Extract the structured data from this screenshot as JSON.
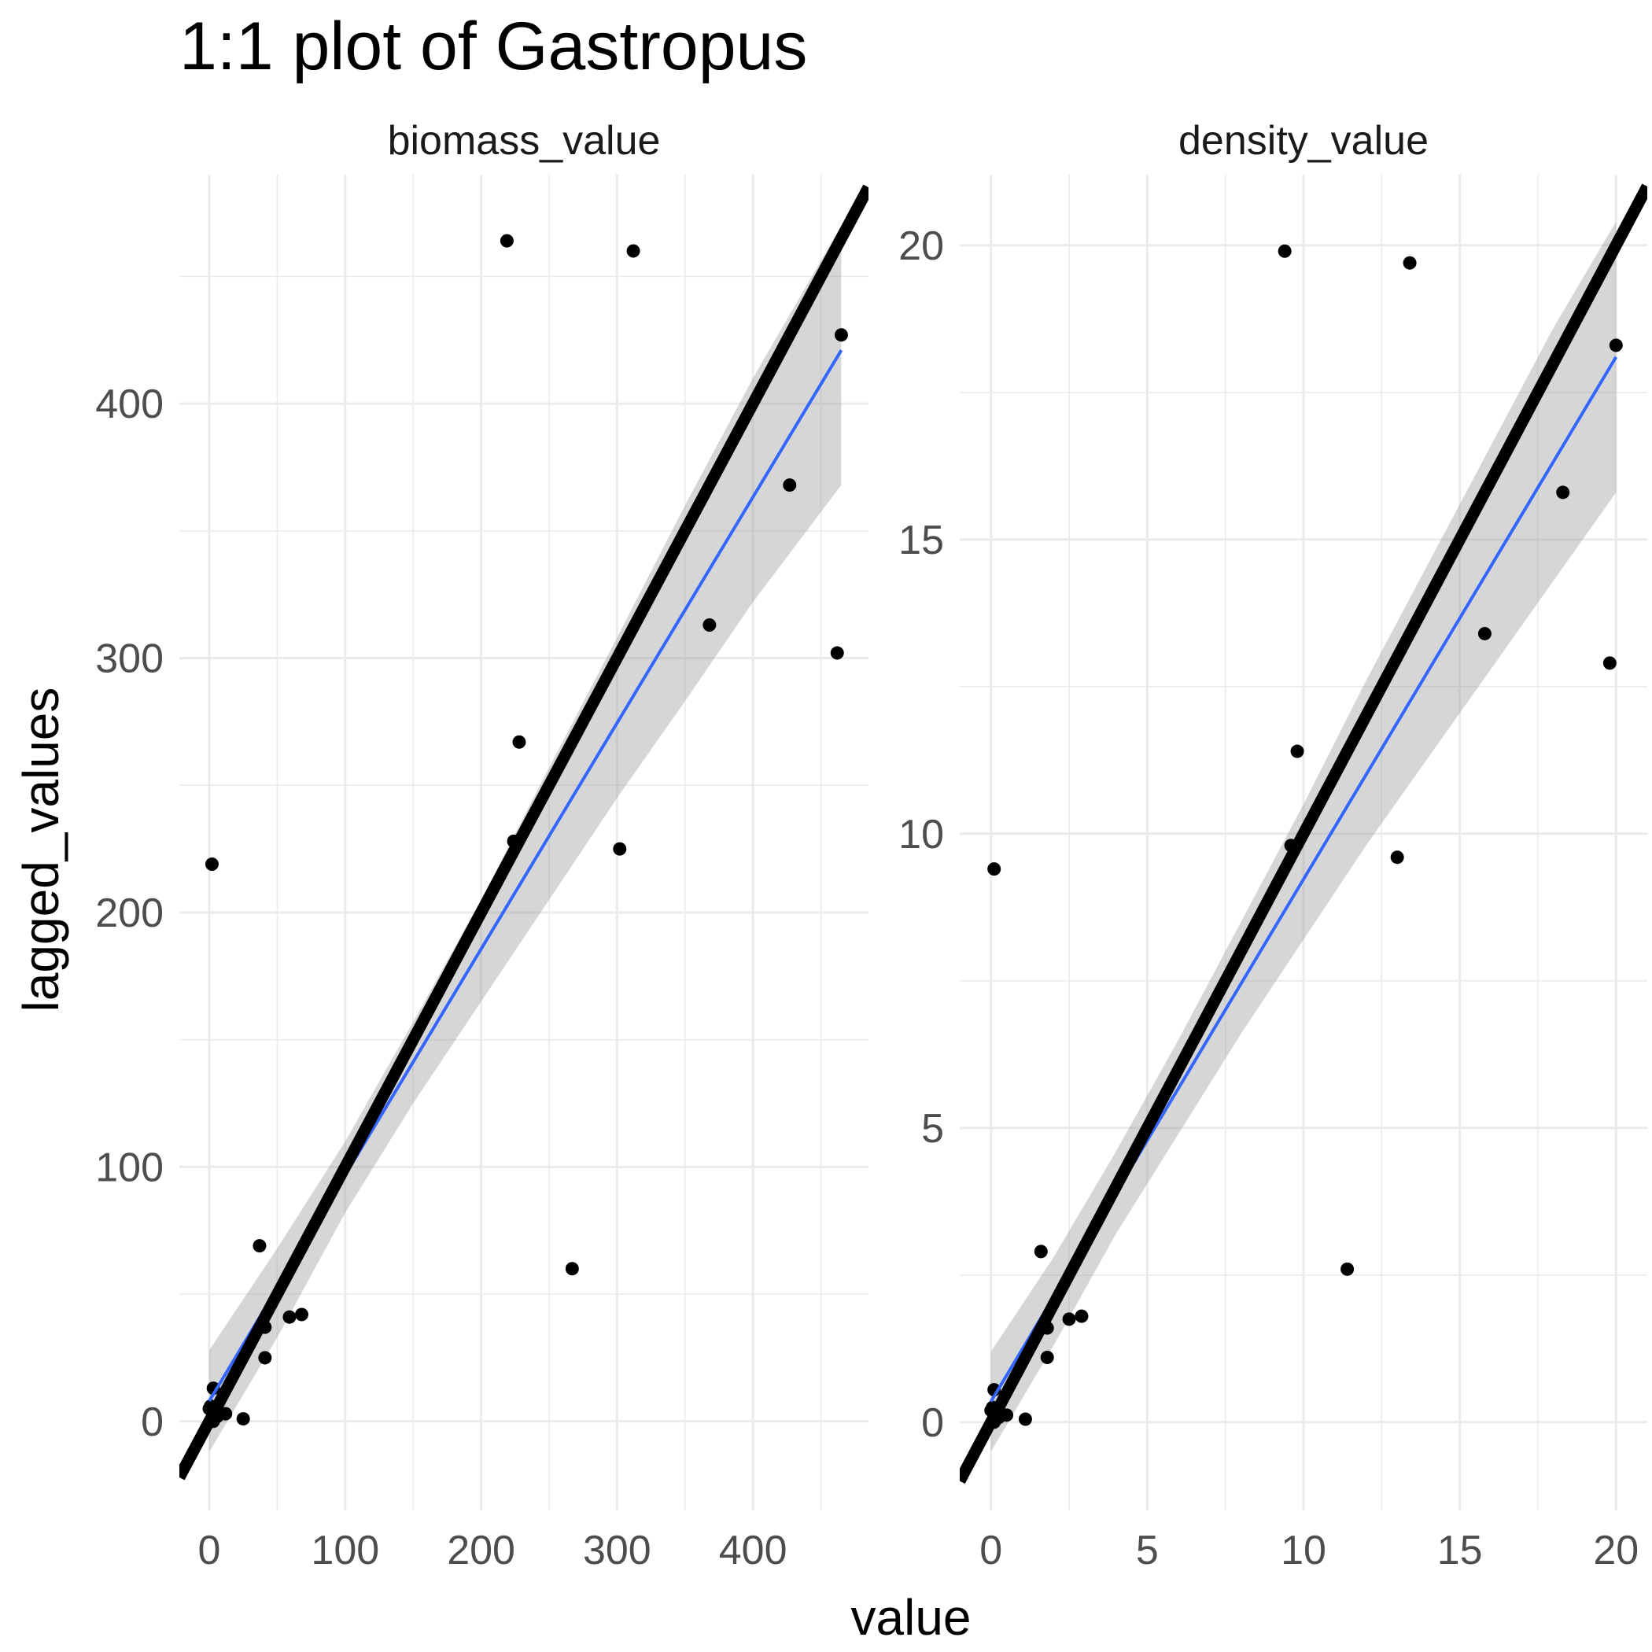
{
  "title": "1:1 plot of Gastropus",
  "xlabel": "value",
  "ylabel": "lagged_values",
  "colors": {
    "points": "#000000",
    "smooth_line": "#3366FF",
    "ribbon": "#999999",
    "identity_line": "#000000",
    "grid": "#EBEBEB"
  },
  "chart_data": [
    {
      "type": "scatter",
      "panel": "biomass_value",
      "grid": true,
      "xlim": [
        -22,
        485
      ],
      "ylim": [
        -35,
        490
      ],
      "xticks": [
        0,
        100,
        200,
        300,
        400
      ],
      "xtick_labels": [
        "0",
        "100",
        "200",
        "300",
        "400"
      ],
      "yticks": [
        0,
        100,
        200,
        300,
        400
      ],
      "ytick_labels": [
        "0",
        "100",
        "200",
        "300",
        "400"
      ],
      "points": [
        {
          "x": 219,
          "y": 464
        },
        {
          "x": 312,
          "y": 460
        },
        {
          "x": 465,
          "y": 427
        },
        {
          "x": 427,
          "y": 368
        },
        {
          "x": 368,
          "y": 313
        },
        {
          "x": 462,
          "y": 302
        },
        {
          "x": 228,
          "y": 267
        },
        {
          "x": 224,
          "y": 228
        },
        {
          "x": 302,
          "y": 225
        },
        {
          "x": 2,
          "y": 219
        },
        {
          "x": 37,
          "y": 69
        },
        {
          "x": 267,
          "y": 60
        },
        {
          "x": 68,
          "y": 42
        },
        {
          "x": 59,
          "y": 41
        },
        {
          "x": 41,
          "y": 37
        },
        {
          "x": 41,
          "y": 25
        },
        {
          "x": 3,
          "y": 13
        },
        {
          "x": 1,
          "y": 6
        },
        {
          "x": 0,
          "y": 5
        },
        {
          "x": 12,
          "y": 3
        },
        {
          "x": 6,
          "y": 2
        },
        {
          "x": 25,
          "y": 1
        },
        {
          "x": 3,
          "y": 0
        }
      ],
      "smooth": {
        "x": [
          0,
          465
        ],
        "y": [
          8,
          421
        ]
      },
      "ribbon": {
        "x": [
          0,
          50,
          100,
          150,
          200,
          250,
          300,
          350,
          400,
          465
        ],
        "upper": [
          28,
          68,
          110,
          157,
          205,
          257,
          308,
          360,
          410,
          470
        ],
        "lower": [
          -12,
          33,
          82,
          125,
          165,
          205,
          245,
          283,
          322,
          368
        ]
      },
      "identity_line": {
        "x": [
          -22,
          485
        ],
        "y": [
          -22,
          485
        ]
      }
    },
    {
      "type": "scatter",
      "panel": "density_value",
      "grid": true,
      "xlim": [
        -1,
        21
      ],
      "ylim": [
        -1.5,
        21.2
      ],
      "xticks": [
        0,
        5,
        10,
        15,
        20
      ],
      "xtick_labels": [
        "0",
        "5",
        "10",
        "15",
        "20"
      ],
      "yticks": [
        0,
        5,
        10,
        15,
        20
      ],
      "ytick_labels": [
        "0",
        "5",
        "10",
        "15",
        "20"
      ],
      "points": [
        {
          "x": 9.4,
          "y": 19.9
        },
        {
          "x": 13.4,
          "y": 19.7
        },
        {
          "x": 20.0,
          "y": 18.3
        },
        {
          "x": 18.3,
          "y": 15.8
        },
        {
          "x": 15.8,
          "y": 13.4
        },
        {
          "x": 19.8,
          "y": 12.9
        },
        {
          "x": 9.8,
          "y": 11.4
        },
        {
          "x": 9.6,
          "y": 9.8
        },
        {
          "x": 13.0,
          "y": 9.6
        },
        {
          "x": 0.1,
          "y": 9.4
        },
        {
          "x": 1.6,
          "y": 2.9
        },
        {
          "x": 11.4,
          "y": 2.6
        },
        {
          "x": 2.9,
          "y": 1.8
        },
        {
          "x": 2.5,
          "y": 1.75
        },
        {
          "x": 1.8,
          "y": 1.6
        },
        {
          "x": 1.8,
          "y": 1.1
        },
        {
          "x": 0.1,
          "y": 0.55
        },
        {
          "x": 0.05,
          "y": 0.25
        },
        {
          "x": 0.0,
          "y": 0.2
        },
        {
          "x": 0.5,
          "y": 0.12
        },
        {
          "x": 0.25,
          "y": 0.08
        },
        {
          "x": 1.1,
          "y": 0.05
        },
        {
          "x": 0.1,
          "y": 0.0
        }
      ],
      "smooth": {
        "x": [
          0,
          20
        ],
        "y": [
          0.35,
          18.1
        ]
      },
      "ribbon": {
        "x": [
          0,
          2,
          4,
          6,
          8,
          10,
          12,
          14,
          16,
          18,
          20
        ],
        "upper": [
          1.2,
          2.8,
          4.6,
          6.5,
          8.5,
          10.5,
          12.6,
          14.6,
          16.6,
          18.6,
          20.4
        ],
        "lower": [
          -0.5,
          1.3,
          3.2,
          4.9,
          6.6,
          8.2,
          9.8,
          11.3,
          12.8,
          14.3,
          15.8
        ]
      },
      "identity_line": {
        "x": [
          -1,
          21
        ],
        "y": [
          -1,
          21
        ]
      }
    }
  ]
}
